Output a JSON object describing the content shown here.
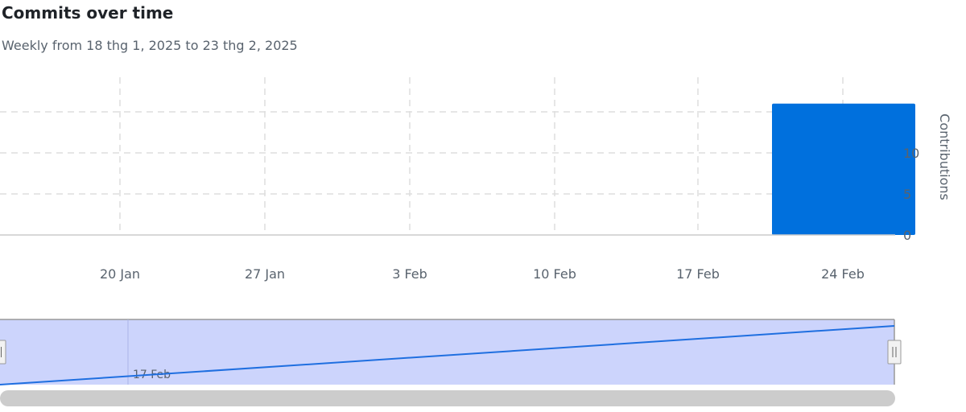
{
  "header": {
    "title": "Commits over time",
    "subtitle": "Weekly from 18 thg 1, 2025 to 23 thg 2, 2025"
  },
  "chart_data": {
    "type": "bar",
    "categories": [
      "20 Jan",
      "27 Jan",
      "3 Feb",
      "10 Feb",
      "17 Feb",
      "24 Feb"
    ],
    "values": [
      0,
      0,
      0,
      0,
      0,
      16
    ],
    "ylabel": "Contributions",
    "yticks": [
      "0",
      "5",
      "10"
    ],
    "ylim": [
      0,
      16
    ],
    "grid": true,
    "color": "#0070dd"
  },
  "navigator": {
    "label": "17 Feb",
    "fill_color": "#ccd4fc",
    "line_color": "#1f6fe0",
    "scrollbar_color": "#cccccc"
  }
}
